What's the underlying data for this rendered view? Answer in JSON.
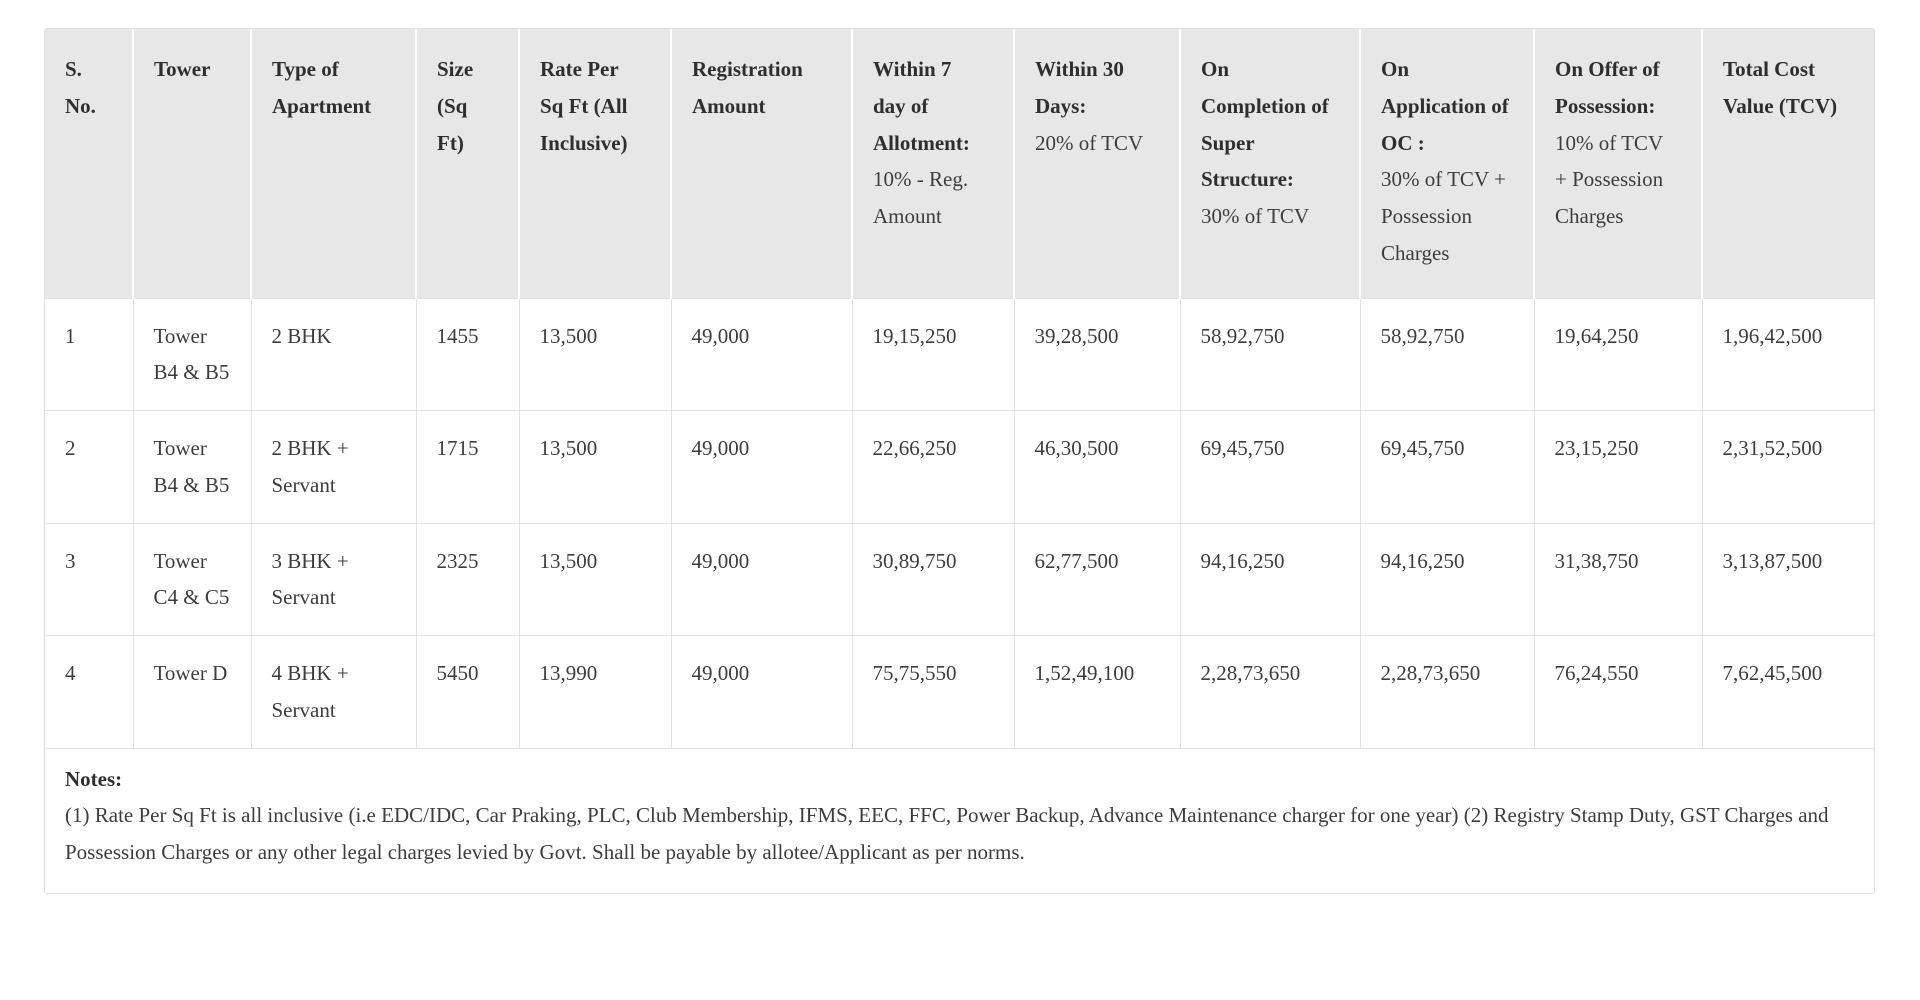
{
  "colors": {
    "header_bg": "#e7e7e7",
    "body_bg": "#ffffff",
    "cell_border": "#e3e3e3",
    "container_border": "#e0e0e0",
    "header_text": "#2e2e2e",
    "body_text": "#3d3d3d"
  },
  "price_table": {
    "columns": [
      {
        "title": "S. No.",
        "subtitle": ""
      },
      {
        "title": "Tower",
        "subtitle": ""
      },
      {
        "title": "Type of Apartment",
        "subtitle": ""
      },
      {
        "title": "Size (Sq Ft)",
        "subtitle": ""
      },
      {
        "title": "Rate Per Sq Ft (All Inclusive)",
        "subtitle": ""
      },
      {
        "title": "Registration Amount",
        "subtitle": ""
      },
      {
        "title": "Within 7 day of Allotment:",
        "subtitle": "10% - Reg. Amount"
      },
      {
        "title": "Within 30 Days:",
        "subtitle": "20% of TCV"
      },
      {
        "title": "On Completion of Super Structure:",
        "subtitle": "30% of TCV"
      },
      {
        "title": "On Application of OC :",
        "subtitle": "30% of TCV + Possession Charges"
      },
      {
        "title": "On Offer of Possession:",
        "subtitle": "10% of TCV + Possession Charges"
      },
      {
        "title": "Total Cost Value (TCV)",
        "subtitle": ""
      }
    ],
    "rows": [
      [
        "1",
        "Tower B4 & B5",
        "2 BHK",
        "1455",
        "13,500",
        "49,000",
        "19,15,250",
        "39,28,500",
        "58,92,750",
        "58,92,750",
        "19,64,250",
        "1,96,42,500"
      ],
      [
        "2",
        "Tower B4 & B5",
        "2 BHK + Servant",
        "1715",
        "13,500",
        "49,000",
        "22,66,250",
        "46,30,500",
        "69,45,750",
        "69,45,750",
        "23,15,250",
        "2,31,52,500"
      ],
      [
        "3",
        "Tower C4 & C5",
        "3 BHK + Servant",
        "2325",
        "13,500",
        "49,000",
        "30,89,750",
        "62,77,500",
        "94,16,250",
        "94,16,250",
        "31,38,750",
        "3,13,87,500"
      ],
      [
        "4",
        "Tower D",
        "4 BHK + Servant",
        "5450",
        "13,990",
        "49,000",
        "75,75,550",
        "1,52,49,100",
        "2,28,73,650",
        "2,28,73,650",
        "76,24,550",
        "7,62,45,500"
      ]
    ]
  },
  "notes": {
    "title": "Notes:",
    "text": "(1) Rate Per Sq Ft is all inclusive (i.e EDC/IDC, Car Praking, PLC, Club Membership, IFMS, EEC, FFC, Power Backup, Advance Maintenance charger for one year) (2) Registry Stamp Duty, GST Charges and Possession Charges or any other legal charges levied by Govt. Shall be payable by allotee/Applicant as per norms."
  }
}
